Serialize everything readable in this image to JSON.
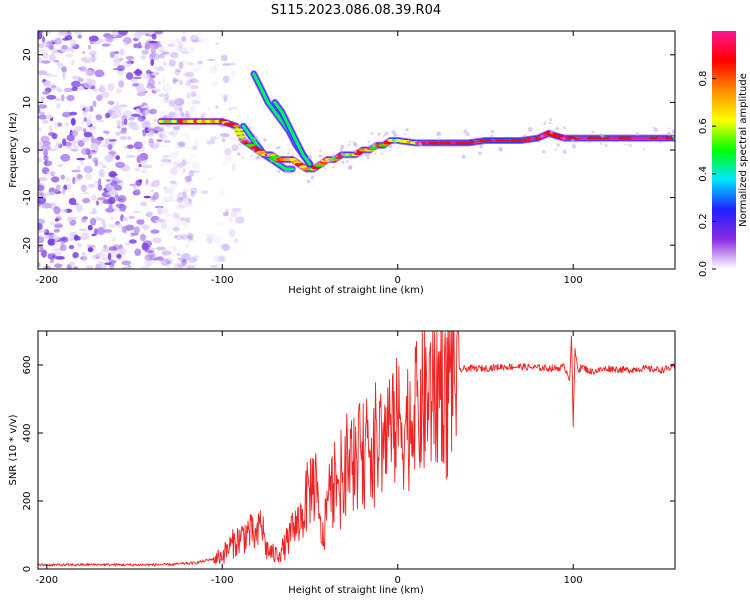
{
  "figure_title": "S115.2023.086.08.39.R04",
  "chart_data": [
    {
      "type": "heatmap",
      "xlabel": "Height of straight line (km)",
      "ylabel": "Frequency (Hz)",
      "xlim": [
        -205,
        158
      ],
      "ylim": [
        -25,
        25
      ],
      "xticks": [
        -200,
        -100,
        0,
        100
      ],
      "yticks": [
        -20,
        -10,
        0,
        10,
        20
      ],
      "colorbar": {
        "label": "Normalized spectral amplitude",
        "range": [
          0,
          1
        ],
        "ticks": [
          "0.0",
          "0.2",
          "0.4",
          "0.6",
          "0.8"
        ],
        "colors": [
          "#ffffff",
          "#8a2be2",
          "#2020ff",
          "#00e5ff",
          "#00ff00",
          "#ffff00",
          "#ff8c00",
          "#ff0000",
          "#ff1493"
        ]
      },
      "noise_region_x": [
        -205,
        -115
      ],
      "ridge": {
        "x": [
          -135,
          -120,
          -110,
          -100,
          -92,
          -88,
          -84,
          -80,
          -76,
          -72,
          -68,
          -64,
          -60,
          -56,
          -52,
          -48,
          -44,
          -40,
          -36,
          -32,
          -28,
          -24,
          -20,
          -16,
          -12,
          -8,
          -4,
          0,
          10,
          20,
          30,
          40,
          50,
          60,
          70,
          80,
          86,
          90,
          95,
          100,
          110,
          120,
          130,
          140,
          150,
          158
        ],
        "y": [
          6,
          6,
          6,
          6,
          5,
          2,
          1,
          0,
          -1,
          -1,
          -2,
          -2,
          -2,
          -3,
          -4,
          -4,
          -3,
          -2,
          -2,
          -1,
          -1,
          -1,
          0,
          0,
          1,
          1,
          2,
          2,
          1.5,
          1.5,
          1.5,
          1.5,
          2,
          2,
          2,
          2.5,
          3.5,
          3,
          2.5,
          2.5,
          2.5,
          2.5,
          2.5,
          2.5,
          2.5,
          2.5
        ]
      },
      "branches": [
        {
          "x": [
            -88,
            -84,
            -80,
            -76,
            -72,
            -68,
            -64,
            -60
          ],
          "y": [
            5,
            3,
            1,
            -1,
            -2,
            -3,
            -4,
            -4
          ]
        },
        {
          "x": [
            -82,
            -78,
            -74,
            -70,
            -66,
            -62,
            -58,
            -54,
            -50
          ],
          "y": [
            16,
            13,
            10,
            8,
            6,
            4,
            1,
            -1,
            -3
          ]
        },
        {
          "x": [
            -70,
            -66,
            -62,
            -58,
            -54,
            -50
          ],
          "y": [
            10,
            8,
            5,
            2,
            -1,
            -3
          ]
        }
      ]
    },
    {
      "type": "line",
      "xlabel": "Height of straight line (km)",
      "ylabel": "SNR (10 * v/v)",
      "xlim": [
        -205,
        158
      ],
      "ylim": [
        0,
        700
      ],
      "xticks": [
        -200,
        -100,
        0,
        100
      ],
      "yticks": [
        0,
        200,
        400,
        600
      ],
      "series": [
        {
          "color": "#ee2222",
          "x": [
            -205,
            -190,
            -170,
            -150,
            -130,
            -115,
            -105,
            -100,
            -95,
            -90,
            -85,
            -80,
            -78,
            -75,
            -70,
            -65,
            -60,
            -55,
            -50,
            -47,
            -45,
            -42,
            -40,
            -35,
            -30,
            -25,
            -20,
            -15,
            -10,
            -5,
            0,
            5,
            10,
            15,
            20,
            25,
            30,
            35,
            40,
            50,
            60,
            70,
            80,
            90,
            95,
            98,
            99,
            100,
            101,
            103,
            105,
            110,
            120,
            130,
            140,
            150,
            158
          ],
          "y": [
            12,
            12,
            13,
            12,
            13,
            18,
            30,
            40,
            70,
            90,
            110,
            90,
            150,
            60,
            40,
            60,
            110,
            150,
            240,
            260,
            140,
            80,
            220,
            250,
            300,
            330,
            330,
            380,
            370,
            400,
            430,
            430,
            450,
            490,
            520,
            560,
            575,
            585,
            590,
            590,
            595,
            595,
            592,
            590,
            595,
            560,
            690,
            420,
            640,
            585,
            595,
            580,
            590,
            585,
            590,
            585,
            595
          ]
        }
      ]
    }
  ]
}
